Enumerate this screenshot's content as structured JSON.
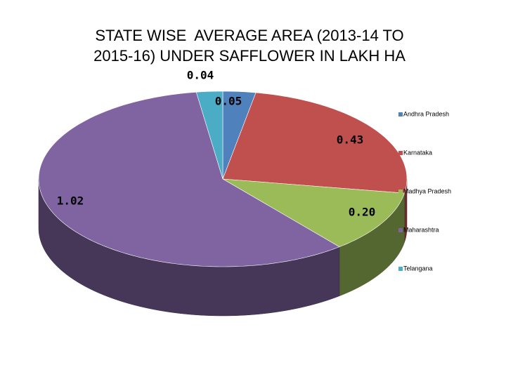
{
  "chart_data": {
    "type": "pie3d",
    "title": "STATE WISE  AVERAGE AREA (2013-14 TO 2015-16) UNDER SAFFLOWER IN LAKH HA",
    "categories": [
      "Andhra Pradesh",
      "Karnataka",
      "Madhya Pradesh",
      "Maharashtra",
      "Telangana"
    ],
    "values": [
      0.05,
      0.43,
      0.2,
      1.02,
      0.04
    ],
    "value_labels": [
      "0.05",
      "0.43",
      "0.20",
      "1.02",
      "0.04"
    ],
    "colors": [
      "#4f81bd",
      "#c0504d",
      "#9bbb59",
      "#8064a2",
      "#4bacc6"
    ],
    "legend": "right"
  }
}
